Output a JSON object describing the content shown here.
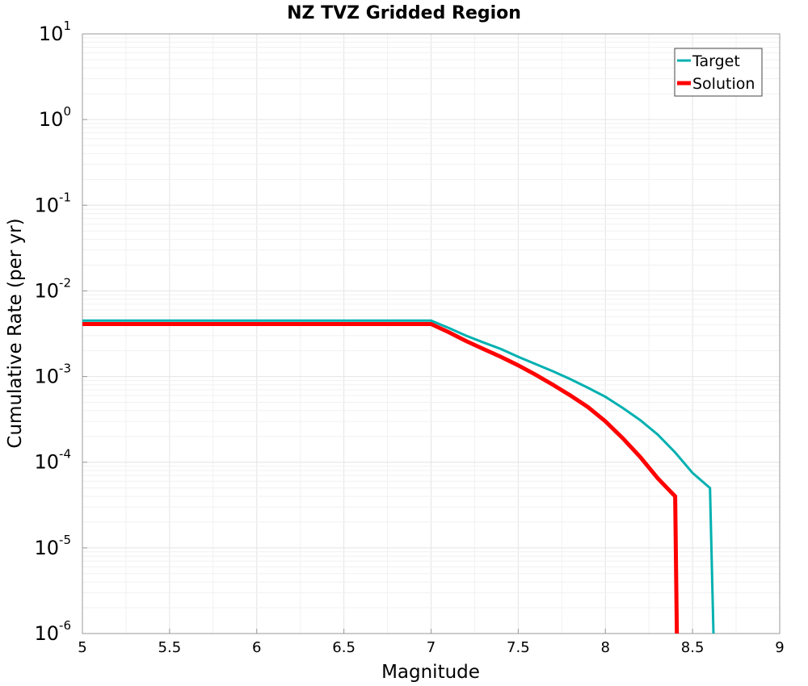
{
  "chart_data": {
    "type": "line",
    "title": "NZ TVZ Gridded Region",
    "xlabel": "Magnitude",
    "ylabel": "Cumulative Rate (per yr)",
    "xlim": [
      5,
      9
    ],
    "ylim": [
      1e-06,
      10
    ],
    "yscale": "log",
    "x_ticks": [
      "5",
      "5.5",
      "6",
      "6.5",
      "7",
      "7.5",
      "8",
      "8.5",
      "9"
    ],
    "y_ticks": [
      {
        "base": "10",
        "exp": "-6"
      },
      {
        "base": "10",
        "exp": "-5"
      },
      {
        "base": "10",
        "exp": "-4"
      },
      {
        "base": "10",
        "exp": "-3"
      },
      {
        "base": "10",
        "exp": "-2"
      },
      {
        "base": "10",
        "exp": "-1"
      },
      {
        "base": "10",
        "exp": "0"
      },
      {
        "base": "10",
        "exp": "1"
      }
    ],
    "grid": true,
    "legend_position": "top-right",
    "series": [
      {
        "name": "Target",
        "color": "#00b0b0",
        "x": [
          5.0,
          5.1,
          5.2,
          5.3,
          5.4,
          5.5,
          5.6,
          5.7,
          5.8,
          5.9,
          6.0,
          6.1,
          6.2,
          6.3,
          6.4,
          6.5,
          6.6,
          6.7,
          6.8,
          6.9,
          7.0,
          7.1,
          7.2,
          7.3,
          7.4,
          7.5,
          7.6,
          7.7,
          7.8,
          7.9,
          8.0,
          8.1,
          8.2,
          8.3,
          8.4,
          8.5,
          8.6,
          8.62
        ],
        "y": [
          0.0045,
          0.0045,
          0.0045,
          0.0045,
          0.0045,
          0.0045,
          0.0045,
          0.0045,
          0.0045,
          0.0045,
          0.0045,
          0.0045,
          0.0045,
          0.0045,
          0.0045,
          0.0045,
          0.0045,
          0.0045,
          0.0045,
          0.0045,
          0.0045,
          0.0037,
          0.003,
          0.0025,
          0.0021,
          0.0017,
          0.0014,
          0.00115,
          0.00093,
          0.00074,
          0.00058,
          0.00043,
          0.00031,
          0.00021,
          0.00013,
          7.5e-05,
          5e-05,
          1e-06
        ]
      },
      {
        "name": "Solution",
        "color": "#ff0000",
        "x": [
          5.0,
          5.1,
          5.2,
          5.3,
          5.4,
          5.5,
          5.6,
          5.7,
          5.8,
          5.9,
          6.0,
          6.1,
          6.2,
          6.3,
          6.4,
          6.5,
          6.6,
          6.7,
          6.8,
          6.9,
          7.0,
          7.1,
          7.2,
          7.3,
          7.4,
          7.5,
          7.6,
          7.7,
          7.8,
          7.9,
          8.0,
          8.1,
          8.2,
          8.3,
          8.4,
          8.41
        ],
        "y": [
          0.0041,
          0.0041,
          0.0041,
          0.0041,
          0.0041,
          0.0041,
          0.0041,
          0.0041,
          0.0041,
          0.0041,
          0.0041,
          0.0041,
          0.0041,
          0.0041,
          0.0041,
          0.0041,
          0.0041,
          0.0041,
          0.0041,
          0.0041,
          0.0041,
          0.0033,
          0.0026,
          0.0021,
          0.0017,
          0.00135,
          0.00105,
          0.0008,
          0.0006,
          0.00044,
          0.0003,
          0.00019,
          0.000115,
          6.5e-05,
          4e-05,
          1e-06
        ]
      }
    ]
  }
}
